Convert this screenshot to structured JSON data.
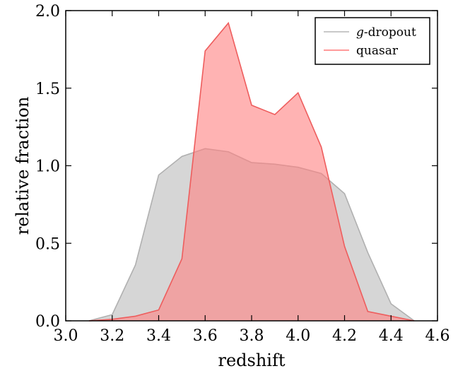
{
  "chart_data": {
    "type": "area",
    "xlabel": "redshift",
    "ylabel": "relative fraction",
    "xlim": [
      3.0,
      4.6
    ],
    "ylim": [
      0.0,
      2.0
    ],
    "xticks": [
      3.0,
      3.2,
      3.4,
      3.6,
      3.8,
      4.0,
      4.2,
      4.4,
      4.6
    ],
    "yticks": [
      0.0,
      0.5,
      1.0,
      1.5,
      2.0
    ],
    "xtick_labels": [
      "3.0",
      "3.2",
      "3.4",
      "3.6",
      "3.8",
      "4.0",
      "4.2",
      "4.4",
      "4.6"
    ],
    "ytick_labels": [
      "0.0",
      "0.5",
      "1.0",
      "1.5",
      "2.0"
    ],
    "grid": false,
    "legend_position": "top-right",
    "series": [
      {
        "name": "g-dropout",
        "name_prefix": "g",
        "name_suffix": "-dropout",
        "color": "#b0b0b0",
        "fill_color": "#c8c8c8",
        "x": [
          3.1,
          3.2,
          3.3,
          3.4,
          3.5,
          3.6,
          3.7,
          3.8,
          3.9,
          4.0,
          4.1,
          4.2,
          4.3,
          4.4,
          4.5
        ],
        "y": [
          0.0,
          0.04,
          0.36,
          0.94,
          1.06,
          1.11,
          1.09,
          1.02,
          1.01,
          0.99,
          0.95,
          0.82,
          0.44,
          0.11,
          0.0
        ]
      },
      {
        "name": "quasar",
        "color": "#ee5d5d",
        "fill_color": "#ff8080",
        "x": [
          3.1,
          3.2,
          3.3,
          3.4,
          3.5,
          3.6,
          3.7,
          3.8,
          3.9,
          4.0,
          4.1,
          4.2,
          4.3,
          4.4,
          4.5
        ],
        "y": [
          0.0,
          0.01,
          0.03,
          0.07,
          0.4,
          1.74,
          1.92,
          1.39,
          1.33,
          1.47,
          1.12,
          0.48,
          0.06,
          0.03,
          0.0
        ]
      }
    ]
  }
}
